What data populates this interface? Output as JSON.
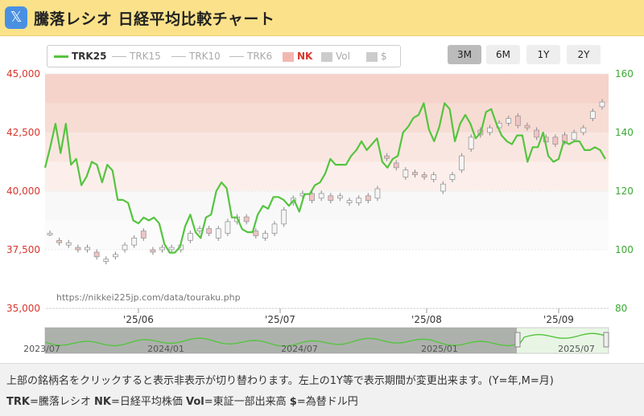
{
  "header": {
    "icon": "x-icon",
    "icon_glyph": "𝕏",
    "title": "騰落レシオ 日経平均比較チャート"
  },
  "legend": [
    {
      "label": "TRK25",
      "color": "#55c43f",
      "active": true
    },
    {
      "label": "TRK15",
      "color": "#bbbbbb",
      "active": false
    },
    {
      "label": "TRK10",
      "color": "#bbbbbb",
      "active": false
    },
    {
      "label": "TRK6",
      "color": "#bbbbbb",
      "active": false
    },
    {
      "label": "NK",
      "color": "#f2b8b0",
      "active": true
    },
    {
      "label": "Vol",
      "color": "#cccccc",
      "active": false
    },
    {
      "label": "$",
      "color": "#cccccc",
      "active": false
    }
  ],
  "ranges": [
    {
      "label": "3M",
      "active": true
    },
    {
      "label": "6M",
      "active": false
    },
    {
      "label": "1Y",
      "active": false
    },
    {
      "label": "2Y",
      "active": false
    }
  ],
  "chart_data": {
    "type": "line",
    "left_axis": {
      "ticks": [
        "45,000",
        "42,500",
        "40,000",
        "37,500",
        "35,000"
      ],
      "range": [
        35000,
        45000
      ],
      "color": "#d9352b"
    },
    "right_axis": {
      "ticks": [
        "160",
        "140",
        "120",
        "100",
        "80"
      ],
      "range": [
        80,
        160
      ],
      "color": "#3aa832"
    },
    "x_ticks": [
      "'25/06",
      "'25/07",
      "'25/08",
      "'25/09"
    ],
    "series": [
      {
        "name": "TRK25",
        "values": [
          128,
          135,
          143,
          133,
          143,
          129,
          131,
          122,
          125,
          130,
          129,
          123,
          129,
          127,
          117,
          117,
          116,
          110,
          109,
          111,
          110,
          111,
          109,
          102,
          99,
          99,
          101,
          108,
          112,
          106,
          104,
          111,
          112,
          120,
          123,
          121,
          111,
          111,
          107,
          106,
          106,
          112,
          115,
          114,
          118,
          118,
          117,
          115,
          117,
          113,
          119,
          119,
          122,
          123,
          126,
          131,
          129,
          129,
          129,
          132,
          134,
          137,
          134,
          136,
          138,
          130,
          128,
          131,
          132,
          140,
          142,
          145,
          146,
          150,
          141,
          137,
          142,
          150,
          148,
          137,
          143,
          146,
          143,
          138,
          140,
          147,
          148,
          143,
          139,
          137,
          136,
          139,
          139,
          130,
          135,
          135,
          140,
          132,
          130,
          131,
          137,
          136,
          137,
          137,
          134,
          134,
          135,
          134,
          131
        ]
      }
    ],
    "candles": [
      {
        "o": 38200,
        "c": 38200
      },
      {
        "o": 37900,
        "c": 37800
      },
      {
        "o": 37700,
        "c": 37800
      },
      {
        "o": 37600,
        "c": 37500
      },
      {
        "o": 37500,
        "c": 37600
      },
      {
        "o": 37400,
        "c": 37200
      },
      {
        "o": 37000,
        "c": 37100
      },
      {
        "o": 37200,
        "c": 37300
      },
      {
        "o": 37500,
        "c": 37700
      },
      {
        "o": 37700,
        "c": 38000
      },
      {
        "o": 38300,
        "c": 38000
      },
      {
        "o": 37500,
        "c": 37400
      },
      {
        "o": 37500,
        "c": 37600
      },
      {
        "o": 37500,
        "c": 37600
      },
      {
        "o": 37500,
        "c": 37700
      },
      {
        "o": 37900,
        "c": 38200
      },
      {
        "o": 38300,
        "c": 38400
      },
      {
        "o": 38400,
        "c": 38200
      },
      {
        "o": 38000,
        "c": 38400
      },
      {
        "o": 38200,
        "c": 38700
      },
      {
        "o": 38700,
        "c": 38900
      },
      {
        "o": 38900,
        "c": 38700
      },
      {
        "o": 38300,
        "c": 38100
      },
      {
        "o": 38000,
        "c": 38200
      },
      {
        "o": 38200,
        "c": 38600
      },
      {
        "o": 38600,
        "c": 39200
      },
      {
        "o": 39500,
        "c": 39700
      },
      {
        "o": 39800,
        "c": 39900
      },
      {
        "o": 39900,
        "c": 39600
      },
      {
        "o": 39700,
        "c": 39900
      },
      {
        "o": 39800,
        "c": 39600
      },
      {
        "o": 39700,
        "c": 39800
      },
      {
        "o": 39500,
        "c": 39600
      },
      {
        "o": 39500,
        "c": 39700
      },
      {
        "o": 39800,
        "c": 39600
      },
      {
        "o": 39700,
        "c": 40100
      },
      {
        "o": 41500,
        "c": 41400
      },
      {
        "o": 41200,
        "c": 41000
      },
      {
        "o": 40600,
        "c": 40900
      },
      {
        "o": 40800,
        "c": 40700
      },
      {
        "o": 40700,
        "c": 40600
      },
      {
        "o": 40500,
        "c": 40700
      },
      {
        "o": 40000,
        "c": 40300
      },
      {
        "o": 40500,
        "c": 40700
      },
      {
        "o": 40900,
        "c": 41500
      },
      {
        "o": 41800,
        "c": 42300
      },
      {
        "o": 42600,
        "c": 42400
      },
      {
        "o": 42500,
        "c": 42700
      },
      {
        "o": 42700,
        "c": 42900
      },
      {
        "o": 42900,
        "c": 43100
      },
      {
        "o": 43200,
        "c": 42800
      },
      {
        "o": 42800,
        "c": 42700
      },
      {
        "o": 42600,
        "c": 42300
      },
      {
        "o": 42300,
        "c": 42100
      },
      {
        "o": 42300,
        "c": 42000
      },
      {
        "o": 42400,
        "c": 42100
      },
      {
        "o": 42200,
        "c": 42500
      },
      {
        "o": 42500,
        "c": 42700
      },
      {
        "o": 43100,
        "c": 43400
      },
      {
        "o": 43600,
        "c": 43800
      }
    ]
  },
  "source_url": "https://nikkei225jp.com/data/touraku.php",
  "navigator": {
    "labels": [
      "2023/07",
      "2024/01",
      "2024/07",
      "2025/01",
      "2025/07"
    ]
  },
  "footer": {
    "line1": "上部の銘柄名をクリックすると表示非表示が切り替わります。左上の1Y等で表示期間が変更出来ます。(Y=年,M=月)",
    "line2_parts": [
      {
        "b": "TRK",
        "t": "=騰落レシオ "
      },
      {
        "b": "NK",
        "t": "=日経平均株価 "
      },
      {
        "b": "Vol",
        "t": "=東証一部出来高 "
      },
      {
        "b": "$",
        "t": "=為替ドル円"
      }
    ]
  }
}
